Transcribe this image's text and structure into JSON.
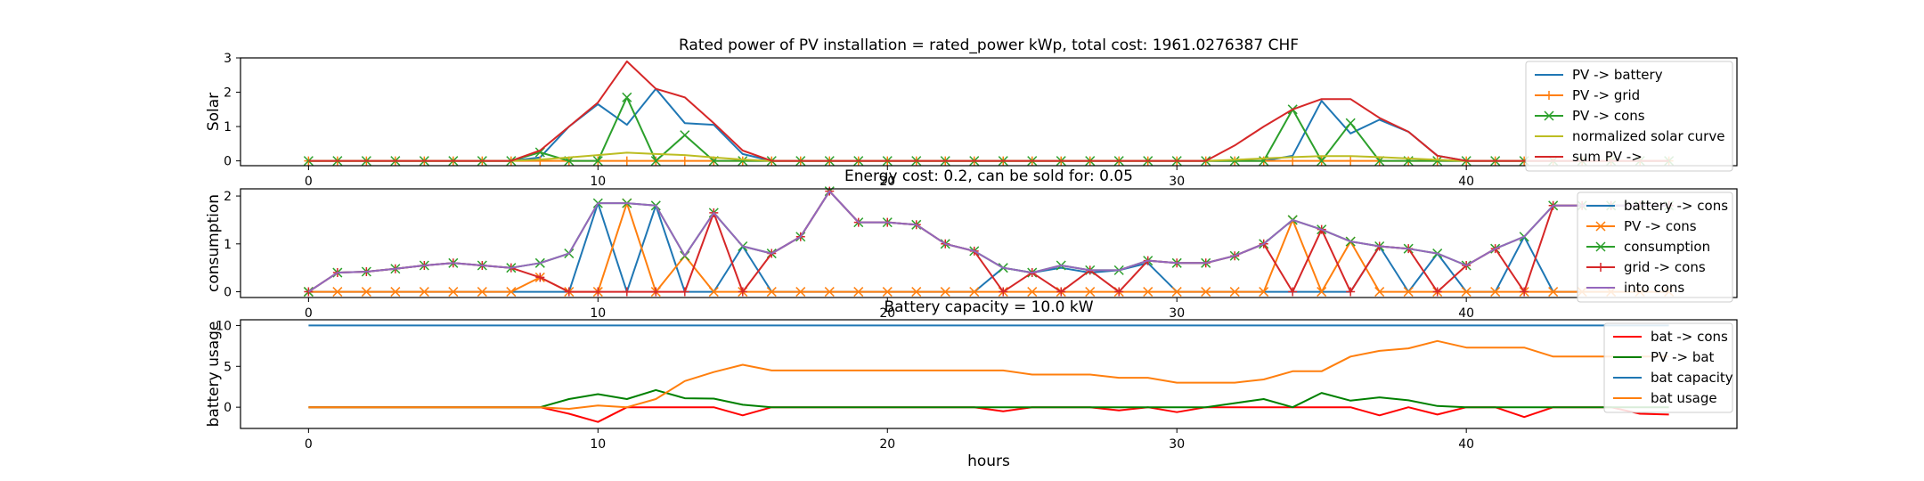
{
  "chart_data": [
    {
      "type": "line",
      "title": "Rated power of PV installation = rated_power kWp, total cost: 1961.0276387 CHF",
      "xlabel": "",
      "ylabel": "Solar",
      "xlim": [
        -2.35,
        49.35
      ],
      "ylim": [
        -0.14,
        3.0
      ],
      "xticks": [
        0,
        10,
        20,
        30,
        40
      ],
      "yticks": [
        0,
        1,
        2,
        3
      ],
      "legend": "top-right",
      "x_start": 0,
      "series": [
        {
          "name": "PV -> battery",
          "color": "#1f77b4",
          "marker": "none",
          "values": [
            0,
            0,
            0,
            0,
            0,
            0,
            0,
            0,
            0.1,
            1.0,
            1.65,
            1.05,
            2.1,
            1.1,
            1.05,
            0.2,
            0,
            0,
            0,
            0,
            0,
            0,
            0,
            0,
            0,
            0,
            0,
            0,
            0,
            0,
            0,
            0,
            0,
            0,
            0.15,
            1.75,
            0.8,
            1.2,
            0.85,
            0.15,
            0,
            0,
            0,
            0,
            0,
            0,
            0,
            0
          ]
        },
        {
          "name": "PV -> grid",
          "color": "#ff7f0e",
          "marker": "plus",
          "values": [
            0,
            0,
            0,
            0,
            0,
            0,
            0,
            0,
            0,
            0,
            0,
            0,
            0,
            0,
            0,
            0,
            0,
            0,
            0,
            0,
            0,
            0,
            0,
            0,
            0,
            0,
            0,
            0,
            0,
            0,
            0,
            0,
            0,
            0,
            0,
            0,
            0,
            0,
            0,
            0,
            0,
            0,
            0,
            0,
            0,
            0,
            0,
            0
          ]
        },
        {
          "name": "PV -> cons",
          "color": "#2ca02c",
          "marker": "x",
          "values": [
            0,
            0,
            0,
            0,
            0,
            0,
            0,
            0,
            0.25,
            0,
            0,
            1.85,
            0,
            0.75,
            0,
            0,
            0,
            0,
            0,
            0,
            0,
            0,
            0,
            0,
            0,
            0,
            0,
            0,
            0,
            0,
            0,
            0,
            0,
            0,
            1.5,
            0,
            1.1,
            0,
            0,
            0,
            0,
            0,
            0,
            0,
            0,
            0,
            0,
            0
          ]
        },
        {
          "name": "normalized solar curve",
          "color": "#bcbd22",
          "marker": "none",
          "values": [
            0,
            0,
            0,
            0,
            0,
            0,
            0,
            0,
            0.04,
            0.1,
            0.17,
            0.24,
            0.2,
            0.17,
            0.1,
            0.04,
            0,
            0,
            0,
            0,
            0,
            0,
            0,
            0,
            0,
            0,
            0,
            0,
            0,
            0,
            0,
            0,
            0.03,
            0.07,
            0.11,
            0.14,
            0.14,
            0.11,
            0.07,
            0.03,
            0,
            0,
            0,
            0,
            0,
            0,
            0,
            0
          ]
        },
        {
          "name": "sum PV ->",
          "color": "#d62728",
          "marker": "none",
          "values": [
            0,
            0,
            0,
            0,
            0,
            0,
            0,
            0,
            0.3,
            1.0,
            1.7,
            2.9,
            2.1,
            1.85,
            1.1,
            0.3,
            0,
            0,
            0,
            0,
            0,
            0,
            0,
            0,
            0,
            0,
            0,
            0,
            0,
            0,
            0,
            0,
            0.45,
            1.0,
            1.5,
            1.8,
            1.8,
            1.25,
            0.85,
            0.15,
            0,
            0,
            0,
            0,
            0,
            0,
            0,
            0
          ]
        }
      ]
    },
    {
      "type": "line",
      "title": "Energy cost: 0.2, can be sold for: 0.05",
      "xlabel": "",
      "ylabel": "consumption",
      "xlim": [
        -2.35,
        49.35
      ],
      "ylim": [
        -0.12,
        2.15
      ],
      "xticks": [
        0,
        10,
        20,
        30,
        40
      ],
      "yticks": [
        0,
        1,
        2
      ],
      "legend": "top-right",
      "x_start": 0,
      "series": [
        {
          "name": "battery -> cons",
          "color": "#1f77b4",
          "marker": "none",
          "values": [
            0,
            0,
            0,
            0,
            0,
            0,
            0,
            0,
            0,
            0,
            1.85,
            0,
            1.8,
            0,
            0,
            0.95,
            0,
            0,
            0,
            0,
            0,
            0,
            0,
            0,
            0.5,
            0.4,
            0.5,
            0.4,
            0.45,
            0.6,
            0,
            0,
            0,
            0,
            0,
            0,
            0,
            0.95,
            0,
            0.8,
            0,
            0,
            1.15,
            0,
            0,
            0,
            0,
            0
          ]
        },
        {
          "name": "PV -> cons",
          "color": "#ff7f0e",
          "marker": "x",
          "values": [
            0,
            0,
            0,
            0,
            0,
            0,
            0,
            0,
            0.3,
            0,
            0,
            1.85,
            0,
            0.75,
            0,
            0,
            0,
            0,
            0,
            0,
            0,
            0,
            0,
            0,
            0,
            0,
            0,
            0,
            0,
            0,
            0,
            0,
            0,
            0,
            1.5,
            0,
            1.05,
            0,
            0,
            0,
            0,
            0,
            0,
            0,
            0,
            0,
            0,
            0
          ]
        },
        {
          "name": "consumption",
          "color": "#2ca02c",
          "marker": "x",
          "values": [
            0,
            0.4,
            0.42,
            0.48,
            0.55,
            0.6,
            0.55,
            0.5,
            0.6,
            0.8,
            1.85,
            1.85,
            1.8,
            0.75,
            1.65,
            0.95,
            0.8,
            1.15,
            2.1,
            1.45,
            1.45,
            1.4,
            1.0,
            0.85,
            0.5,
            0.4,
            0.55,
            0.45,
            0.45,
            0.65,
            0.6,
            0.6,
            0.75,
            1.0,
            1.5,
            1.3,
            1.05,
            0.95,
            0.9,
            0.8,
            0.55,
            0.9,
            1.15,
            1.8,
            1.8,
            1.8,
            1.8,
            1.8
          ]
        },
        {
          "name": "grid -> cons",
          "color": "#d62728",
          "marker": "plus",
          "values": [
            0,
            0.4,
            0.42,
            0.48,
            0.55,
            0.6,
            0.55,
            0.5,
            0.3,
            0,
            0,
            0,
            0,
            0,
            1.65,
            0,
            0.8,
            1.15,
            2.1,
            1.45,
            1.45,
            1.4,
            1.0,
            0.85,
            0,
            0.4,
            0,
            0.45,
            0,
            0.65,
            0.6,
            0.6,
            0.75,
            1.0,
            0,
            1.3,
            0,
            0.95,
            0.9,
            0,
            0.55,
            0.9,
            0,
            1.8,
            1.8,
            1.8,
            1.8,
            1.8
          ]
        },
        {
          "name": "into cons",
          "color": "#9467bd",
          "marker": "none",
          "values": [
            0,
            0.4,
            0.42,
            0.48,
            0.55,
            0.6,
            0.55,
            0.5,
            0.6,
            0.8,
            1.85,
            1.85,
            1.8,
            0.75,
            1.65,
            0.95,
            0.8,
            1.15,
            2.1,
            1.45,
            1.45,
            1.4,
            1.0,
            0.85,
            0.5,
            0.4,
            0.55,
            0.45,
            0.45,
            0.65,
            0.6,
            0.6,
            0.75,
            1.0,
            1.5,
            1.3,
            1.05,
            0.95,
            0.9,
            0.8,
            0.55,
            0.9,
            1.15,
            1.8,
            1.8,
            1.8,
            1.8,
            1.8
          ]
        }
      ]
    },
    {
      "type": "line",
      "title": "Battery capacity = 10.0 kW",
      "xlabel": "hours",
      "ylabel": "battery usage",
      "xlim": [
        -2.35,
        49.35
      ],
      "ylim": [
        -2.6,
        10.7
      ],
      "xticks": [
        0,
        10,
        20,
        30,
        40
      ],
      "yticks": [
        0,
        5,
        10
      ],
      "legend": "top-right",
      "x_start": 0,
      "series": [
        {
          "name": "bat -> cons",
          "color": "#ff0000",
          "marker": "none",
          "values": [
            0,
            0,
            0,
            0,
            0,
            0,
            0,
            0,
            0,
            -0.8,
            -1.8,
            0,
            0,
            0,
            0,
            -1.0,
            0,
            0,
            0,
            0,
            0,
            0,
            0,
            0,
            -0.5,
            0,
            0,
            0,
            -0.4,
            0,
            -0.6,
            0,
            0,
            0,
            0,
            0,
            0,
            -1.0,
            0,
            -0.9,
            0,
            0,
            -1.2,
            0,
            0,
            0,
            -0.8,
            -0.9
          ]
        },
        {
          "name": "PV -> bat",
          "color": "#008000",
          "marker": "none",
          "values": [
            0,
            0,
            0,
            0,
            0,
            0,
            0,
            0,
            0,
            1.0,
            1.6,
            1.0,
            2.1,
            1.1,
            1.05,
            0.3,
            0,
            0,
            0,
            0,
            0,
            0,
            0,
            0,
            0,
            0,
            0,
            0,
            0,
            0,
            0,
            0,
            0.5,
            1.0,
            0,
            1.75,
            0.8,
            1.2,
            0.85,
            0.15,
            0,
            0,
            0,
            0,
            0,
            0,
            0,
            0
          ]
        },
        {
          "name": "bat capacity",
          "color": "#1f77b4",
          "marker": "none",
          "values": [
            10,
            10,
            10,
            10,
            10,
            10,
            10,
            10,
            10,
            10,
            10,
            10,
            10,
            10,
            10,
            10,
            10,
            10,
            10,
            10,
            10,
            10,
            10,
            10,
            10,
            10,
            10,
            10,
            10,
            10,
            10,
            10,
            10,
            10,
            10,
            10,
            10,
            10,
            10,
            10,
            10,
            10,
            10,
            10,
            10,
            10,
            10,
            10
          ]
        },
        {
          "name": "bat usage",
          "color": "#ff7f0e",
          "marker": "none",
          "values": [
            0,
            0,
            0,
            0,
            0,
            0,
            0,
            0,
            0,
            -0.2,
            0.2,
            0,
            1.0,
            3.2,
            4.3,
            5.2,
            4.5,
            4.5,
            4.5,
            4.5,
            4.5,
            4.5,
            4.5,
            4.5,
            4.5,
            4.0,
            4.0,
            4.0,
            3.6,
            3.6,
            3.0,
            3.0,
            3.0,
            3.4,
            4.4,
            4.4,
            6.2,
            6.9,
            7.2,
            8.1,
            7.3,
            7.3,
            7.3,
            6.2,
            6.2,
            6.2,
            6.2,
            6.2
          ]
        }
      ]
    }
  ]
}
